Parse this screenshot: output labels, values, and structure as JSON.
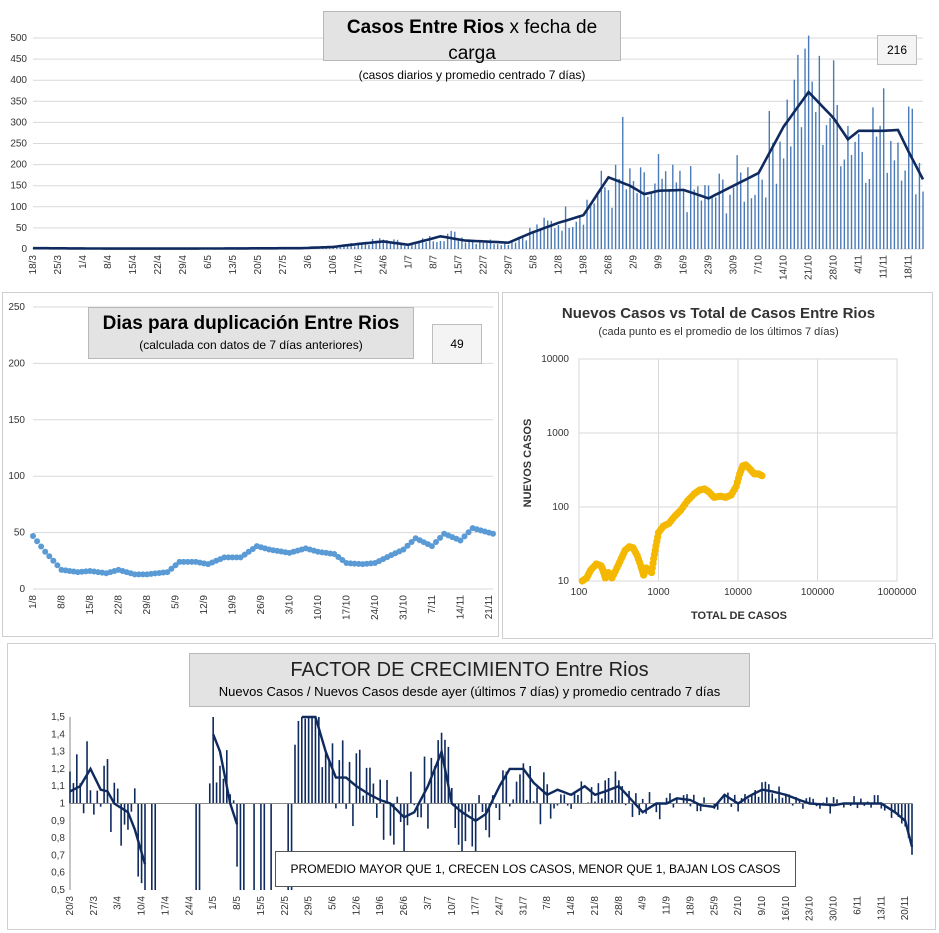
{
  "chart_data": [
    {
      "id": "casos",
      "type": "bar",
      "title_bold": "Casos  Entre  Rios",
      "title_rest": " x fecha  de  carga",
      "subtitle": "(casos diarios y promedio  centrado  7 días)",
      "badge": "216",
      "ylim": [
        0,
        500
      ],
      "yticks": [
        0,
        50,
        100,
        150,
        200,
        250,
        300,
        350,
        400,
        450,
        500
      ],
      "x_start": "18/3",
      "x_end": "22/11",
      "xtick_labels": [
        "18/3",
        "25/3",
        "1/4",
        "8/4",
        "15/4",
        "22/4",
        "29/4",
        "6/5",
        "13/5",
        "20/5",
        "27/5",
        "3/6",
        "10/6",
        "17/6",
        "24/6",
        "1/7",
        "8/7",
        "15/7",
        "22/7",
        "29/7",
        "5/8",
        "12/8",
        "19/8",
        "26/8",
        "2/9",
        "9/9",
        "16/9",
        "23/9",
        "30/9",
        "7/10",
        "14/10",
        "21/10",
        "28/10",
        "4/11",
        "11/11",
        "18/11"
      ],
      "series": [
        {
          "kind": "bar",
          "color": "#4a7ab8",
          "spikes": [
            [
              "30/8",
              313
            ],
            [
              "9/9",
              225
            ],
            [
              "18/10",
              460
            ],
            [
              "20/10",
              475
            ]
          ],
          "values_by_date": [
            [
              "18/3",
              1
            ],
            [
              "1/4",
              2
            ],
            [
              "15/4",
              1
            ],
            [
              "1/5",
              1
            ],
            [
              "15/5",
              0
            ],
            [
              "1/6",
              2
            ],
            [
              "10/6",
              5
            ],
            [
              "20/6",
              15
            ],
            [
              "25/6",
              22
            ],
            [
              "1/7",
              10
            ],
            [
              "12/7",
              35
            ],
            [
              "20/7",
              20
            ],
            [
              "29/7",
              15
            ],
            [
              "5/8",
              45
            ],
            [
              "12/8",
              65
            ],
            [
              "19/8",
              100
            ],
            [
              "26/8",
              150
            ],
            [
              "1/9",
              140
            ],
            [
              "9/9",
              130
            ],
            [
              "16/9",
              145
            ],
            [
              "23/9",
              120
            ],
            [
              "30/9",
              150
            ],
            [
              "7/10",
              180
            ],
            [
              "14/10",
              300
            ],
            [
              "21/10",
              370
            ],
            [
              "28/10",
              330
            ],
            [
              "4/11",
              270
            ],
            [
              "11/11",
              280
            ],
            [
              "18/11",
              280
            ],
            [
              "22/11",
              170
            ]
          ]
        },
        {
          "kind": "line",
          "color": "#0f2a5e",
          "values_by_date": [
            [
              "18/3",
              2
            ],
            [
              "8/4",
              1
            ],
            [
              "1/5",
              1
            ],
            [
              "1/6",
              2
            ],
            [
              "10/6",
              5
            ],
            [
              "17/6",
              12
            ],
            [
              "24/6",
              18
            ],
            [
              "1/7",
              10
            ],
            [
              "10/7",
              30
            ],
            [
              "17/7",
              20
            ],
            [
              "22/7",
              18
            ],
            [
              "29/7",
              15
            ],
            [
              "5/8",
              40
            ],
            [
              "12/8",
              62
            ],
            [
              "19/8",
              80
            ],
            [
              "26/8",
              170
            ],
            [
              "1/9",
              150
            ],
            [
              "5/9",
              130
            ],
            [
              "9/9",
              138
            ],
            [
              "16/9",
              140
            ],
            [
              "23/9",
              120
            ],
            [
              "30/9",
              150
            ],
            [
              "7/10",
              180
            ],
            [
              "14/10",
              290
            ],
            [
              "21/10",
              372
            ],
            [
              "28/10",
              310
            ],
            [
              "1/11",
              260
            ],
            [
              "4/11",
              280
            ],
            [
              "11/11",
              280
            ],
            [
              "15/11",
              282
            ],
            [
              "18/11",
              230
            ],
            [
              "22/11",
              165
            ]
          ]
        }
      ]
    },
    {
      "id": "duplicacion",
      "type": "line",
      "title": "Dias para duplicación Entre Rios",
      "subtitle": "(calculada con datos de 7 días anteriores)",
      "badge": "49",
      "ylim": [
        0,
        250
      ],
      "yticks": [
        0,
        50,
        100,
        150,
        200,
        250
      ],
      "x_start": "1/8",
      "x_end": "22/11",
      "xtick_labels": [
        "1/8",
        "8/8",
        "15/8",
        "22/8",
        "29/8",
        "5/9",
        "12/9",
        "19/9",
        "26/9",
        "3/10",
        "10/10",
        "17/10",
        "24/10",
        "31/10",
        "7/11",
        "14/11",
        "21/11"
      ],
      "series": [
        {
          "color": "#5b9bd5",
          "values_by_date": [
            [
              "1/8",
              47
            ],
            [
              "4/8",
              33
            ],
            [
              "8/8",
              17
            ],
            [
              "12/8",
              15
            ],
            [
              "15/8",
              16
            ],
            [
              "19/8",
              14
            ],
            [
              "22/8",
              17
            ],
            [
              "26/8",
              13
            ],
            [
              "29/8",
              13
            ],
            [
              "3/9",
              15
            ],
            [
              "6/9",
              24
            ],
            [
              "10/9",
              24
            ],
            [
              "13/9",
              22
            ],
            [
              "17/9",
              28
            ],
            [
              "21/9",
              28
            ],
            [
              "25/9",
              38
            ],
            [
              "28/9",
              35
            ],
            [
              "3/10",
              32
            ],
            [
              "7/10",
              36
            ],
            [
              "10/10",
              33
            ],
            [
              "14/10",
              31
            ],
            [
              "17/10",
              23
            ],
            [
              "21/10",
              22
            ],
            [
              "24/10",
              23
            ],
            [
              "28/10",
              30
            ],
            [
              "31/10",
              35
            ],
            [
              "3/11",
              45
            ],
            [
              "7/11",
              38
            ],
            [
              "10/11",
              49
            ],
            [
              "14/11",
              43
            ],
            [
              "17/11",
              54
            ],
            [
              "22/11",
              49
            ]
          ]
        }
      ]
    },
    {
      "id": "nuevos_vs_total",
      "type": "scatter",
      "title": "Nuevos Casos vs Total de Casos Entre Rios",
      "subtitle": "(cada punto es el promedio de los últimos 7 días)",
      "xlabel": "TOTAL DE CASOS",
      "ylabel": "NUEVOS CASOS",
      "x_scale": "log",
      "y_scale": "log",
      "xlim": [
        100,
        1000000
      ],
      "ylim": [
        10,
        10000
      ],
      "xtick_labels": [
        "100",
        "1000",
        "10000",
        "100000",
        "1000000"
      ],
      "ytick_labels": [
        "10",
        "100",
        "1000",
        "10000"
      ],
      "series": [
        {
          "color": "#f5b800",
          "points": [
            [
              110,
              10
            ],
            [
              125,
              11
            ],
            [
              140,
              14
            ],
            [
              165,
              17
            ],
            [
              190,
              16
            ],
            [
              200,
              14
            ],
            [
              215,
              11
            ],
            [
              235,
              13
            ],
            [
              260,
              11
            ],
            [
              300,
              15
            ],
            [
              340,
              20
            ],
            [
              380,
              26
            ],
            [
              430,
              29
            ],
            [
              480,
              28
            ],
            [
              540,
              22
            ],
            [
              600,
              16
            ],
            [
              650,
              12
            ],
            [
              700,
              15
            ],
            [
              760,
              14
            ],
            [
              820,
              13
            ],
            [
              870,
              20
            ],
            [
              930,
              30
            ],
            [
              1000,
              45
            ],
            [
              1150,
              55
            ],
            [
              1350,
              60
            ],
            [
              1600,
              75
            ],
            [
              1900,
              90
            ],
            [
              2300,
              120
            ],
            [
              2800,
              150
            ],
            [
              3300,
              170
            ],
            [
              3800,
              175
            ],
            [
              4300,
              160
            ],
            [
              5000,
              135
            ],
            [
              6000,
              140
            ],
            [
              7000,
              135
            ],
            [
              8200,
              145
            ],
            [
              9500,
              190
            ],
            [
              10500,
              280
            ],
            [
              11500,
              360
            ],
            [
              12500,
              370
            ],
            [
              14000,
              330
            ],
            [
              16000,
              280
            ],
            [
              18000,
              280
            ],
            [
              20000,
              265
            ]
          ]
        }
      ]
    },
    {
      "id": "factor",
      "type": "bar",
      "title_main": "FACTOR DE CRECIMIENTO",
      "title_rest": " Entre Rios",
      "subtitle": "Nuevos Casos  / Nuevos Casos desde ayer (últimos 7 días) y promedio  centrado  7 días",
      "note": "PROMEDIO MAYOR QUE 1, CRECEN LOS CASOS, MENOR QUE 1, BAJAN LOS CASOS",
      "ylim": [
        0.5,
        1.5
      ],
      "baseline": 1,
      "ytick_labels": [
        "0,5",
        "0,6",
        "0,7",
        "0,8",
        "0,9",
        "1",
        "1,1",
        "1,2",
        "1,3",
        "1,4",
        "1,5"
      ],
      "x_start": "20/3",
      "x_end": "22/11",
      "xtick_labels": [
        "20/3",
        "27/3",
        "3/4",
        "10/4",
        "17/4",
        "24/4",
        "1/5",
        "8/5",
        "15/5",
        "22/5",
        "29/5",
        "5/6",
        "12/6",
        "19/6",
        "26/6",
        "3/7",
        "10/7",
        "17/7",
        "24/7",
        "31/7",
        "7/8",
        "14/8",
        "21/8",
        "28/8",
        "4/9",
        "11/9",
        "18/9",
        "25/9",
        "2/10",
        "9/10",
        "16/10",
        "23/10",
        "30/10",
        "6/11",
        "13/11",
        "20/11"
      ],
      "series": [
        {
          "kind": "bar",
          "color": "#0f2a5e"
        },
        {
          "kind": "line",
          "color": "#0f2a5e",
          "values_by_date": [
            [
              "20/3",
              1.07
            ],
            [
              "23/3",
              1.1
            ],
            [
              "26/3",
              1.2
            ],
            [
              "29/3",
              1.08
            ],
            [
              "31/3",
              1.07
            ],
            [
              "2/4",
              1.0
            ],
            [
              "6/4",
              0.95
            ],
            [
              "8/4",
              0.85
            ],
            [
              "11/4",
              0.65
            ],
            [
              "1/5",
              1.4
            ],
            [
              "3/5",
              1.3
            ],
            [
              "6/5",
              1.0
            ],
            [
              "8/5",
              0.88
            ],
            [
              "27/5",
              1.5
            ],
            [
              "31/5",
              1.5
            ],
            [
              "3/6",
              1.3
            ],
            [
              "6/6",
              1.15
            ],
            [
              "9/6",
              1.15
            ],
            [
              "12/6",
              1.1
            ],
            [
              "16/6",
              1.05
            ],
            [
              "19/6",
              1.02
            ],
            [
              "22/6",
              1.0
            ],
            [
              "26/6",
              0.92
            ],
            [
              "29/6",
              0.95
            ],
            [
              "3/7",
              1.1
            ],
            [
              "7/7",
              1.3
            ],
            [
              "10/7",
              1.0
            ],
            [
              "13/7",
              0.95
            ],
            [
              "17/7",
              0.9
            ],
            [
              "20/7",
              0.94
            ],
            [
              "24/7",
              1.1
            ],
            [
              "27/7",
              1.2
            ],
            [
              "31/7",
              1.2
            ],
            [
              "3/8",
              1.12
            ],
            [
              "7/8",
              1.05
            ],
            [
              "10/8",
              1.08
            ],
            [
              "14/8",
              1.05
            ],
            [
              "18/8",
              1.1
            ],
            [
              "21/8",
              1.05
            ],
            [
              "24/8",
              1.07
            ],
            [
              "28/8",
              1.1
            ],
            [
              "4/9",
              0.95
            ],
            [
              "8/9",
              1.0
            ],
            [
              "11/9",
              1.0
            ],
            [
              "14/9",
              1.03
            ],
            [
              "18/9",
              1.02
            ],
            [
              "21/9",
              0.99
            ],
            [
              "25/9",
              0.98
            ],
            [
              "28/9",
              1.05
            ],
            [
              "2/10",
              1.0
            ],
            [
              "5/10",
              1.04
            ],
            [
              "9/10",
              1.08
            ],
            [
              "12/10",
              1.07
            ],
            [
              "16/10",
              1.05
            ],
            [
              "20/10",
              1.02
            ],
            [
              "23/10",
              1.0
            ],
            [
              "30/10",
              0.99
            ],
            [
              "2/11",
              1.0
            ],
            [
              "6/11",
              1.0
            ],
            [
              "9/11",
              1.0
            ],
            [
              "13/11",
              1.0
            ],
            [
              "17/11",
              0.95
            ],
            [
              "20/11",
              0.9
            ],
            [
              "22/11",
              0.75
            ]
          ]
        }
      ]
    }
  ]
}
